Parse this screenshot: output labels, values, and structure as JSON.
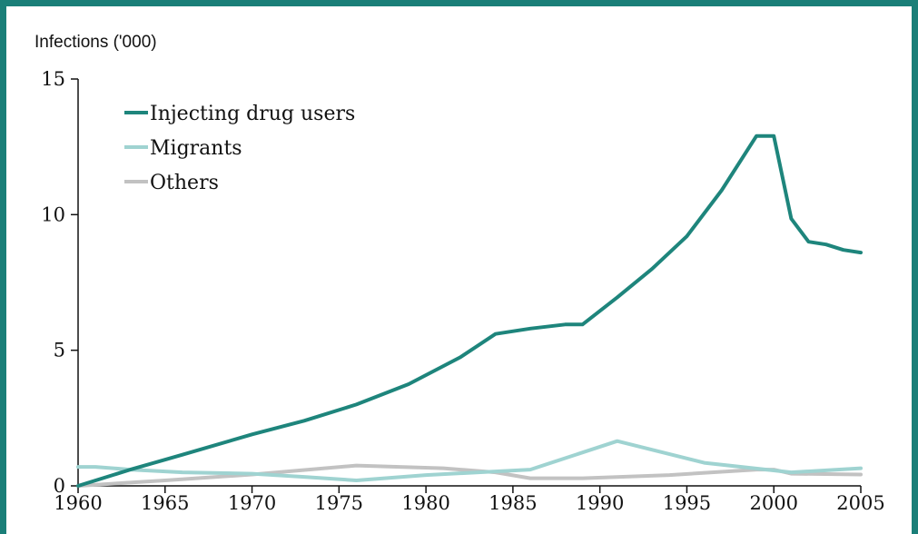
{
  "chart_data": {
    "type": "line",
    "ylabel": "Infections ('000)",
    "xlabel": "",
    "xlim": [
      1960,
      2005
    ],
    "ylim": [
      0,
      15
    ],
    "xticks": [
      1960,
      1965,
      1970,
      1975,
      1980,
      1985,
      1990,
      1995,
      2000,
      2005
    ],
    "yticks": [
      0,
      5,
      10,
      15
    ],
    "grid": false,
    "legend_position": "top-left",
    "series": [
      {
        "name": "Injecting drug users",
        "color": "#1e857c",
        "x": [
          1960,
          1963,
          1966,
          1970,
          1973,
          1976,
          1979,
          1982,
          1984,
          1986,
          1988,
          1989,
          1991,
          1993,
          1995,
          1997,
          1999,
          2000,
          2001,
          2002,
          2003,
          2004,
          2005
        ],
        "y": [
          0,
          0.6,
          1.15,
          1.9,
          2.4,
          3.0,
          3.75,
          4.75,
          5.6,
          5.8,
          5.95,
          5.95,
          6.95,
          8.0,
          9.2,
          10.9,
          12.9,
          12.9,
          9.85,
          9.0,
          8.9,
          8.7,
          8.6
        ]
      },
      {
        "name": "Migrants",
        "color": "#9fd3d1",
        "x": [
          1960,
          1961,
          1963,
          1966,
          1970,
          1973,
          1976,
          1980,
          1986,
          1991,
          1996,
          2001,
          2005
        ],
        "y": [
          0.7,
          0.7,
          0.6,
          0.5,
          0.45,
          0.33,
          0.2,
          0.4,
          0.6,
          1.65,
          0.85,
          0.5,
          0.65
        ]
      },
      {
        "name": "Others",
        "color": "#c2c2c2",
        "x": [
          1960,
          1965,
          1970,
          1976,
          1981,
          1984,
          1986,
          1989,
          1994,
          1999,
          2000,
          2001,
          2005
        ],
        "y": [
          0,
          0.2,
          0.42,
          0.75,
          0.65,
          0.5,
          0.28,
          0.28,
          0.4,
          0.6,
          0.6,
          0.45,
          0.42
        ]
      }
    ]
  }
}
